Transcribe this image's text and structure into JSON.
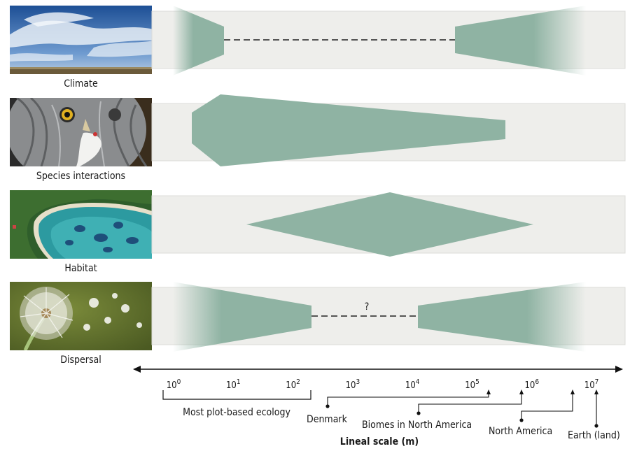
{
  "rows": [
    {
      "label": "Climate",
      "image": "sky-with-clouds-photo",
      "factor": "climate"
    },
    {
      "label": "Species interactions",
      "image": "owl-eating-prey-photo",
      "factor": "species-interactions"
    },
    {
      "label": "Habitat",
      "image": "coastal-lagoon-aerial-photo",
      "factor": "habitat"
    },
    {
      "label": "Dispersal",
      "image": "dandelion-seeds-photo",
      "factor": "dispersal",
      "gap_label": "?"
    }
  ],
  "axis": {
    "title": "Lineal scale (m)",
    "ticks": [
      {
        "base": "10",
        "exp": "0"
      },
      {
        "base": "10",
        "exp": "1"
      },
      {
        "base": "10",
        "exp": "2"
      },
      {
        "base": "10",
        "exp": "3"
      },
      {
        "base": "10",
        "exp": "4"
      },
      {
        "base": "10",
        "exp": "5"
      },
      {
        "base": "10",
        "exp": "6"
      },
      {
        "base": "10",
        "exp": "7"
      }
    ]
  },
  "annotations": {
    "plot_ecology": "Most plot-based ecology",
    "denmark": "Denmark",
    "biomes": "Biomes in North America",
    "north_america": "North America",
    "earth": "Earth (land)"
  },
  "colors": {
    "shape_fill": "#8fb3a3",
    "band_fill": "#eeeeeb",
    "dash": "#222222"
  }
}
